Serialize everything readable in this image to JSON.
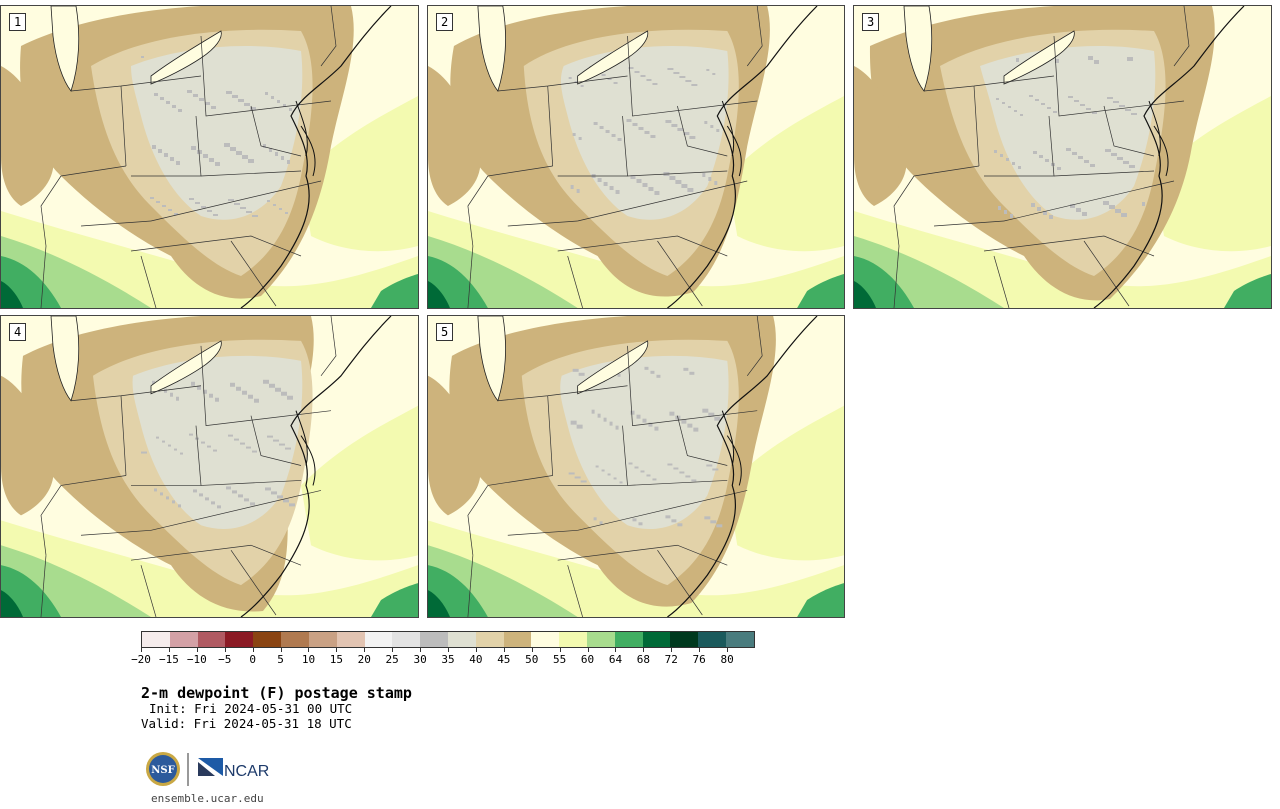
{
  "panels": [
    {
      "label": "1"
    },
    {
      "label": "2"
    },
    {
      "label": "3"
    },
    {
      "label": "4"
    },
    {
      "label": "5"
    }
  ],
  "colorbar": {
    "colors": [
      "#f5ecec",
      "#d4a1a6",
      "#b05a62",
      "#8b1a24",
      "#8a4412",
      "#b07a50",
      "#c9a184",
      "#e2c4b2",
      "#f3f3f3",
      "#e3e3e3",
      "#bcbcbc",
      "#dfe0d2",
      "#e2d2a9",
      "#cdb37c",
      "#fffde0",
      "#f3fab0",
      "#a8dc8e",
      "#41ae62",
      "#006a37",
      "#00391e",
      "#1b5a5c",
      "#4a7c7e"
    ],
    "tick_labels": [
      "−20",
      "−15",
      "−10",
      "−5",
      "0",
      "5",
      "10",
      "15",
      "20",
      "25",
      "30",
      "35",
      "40",
      "45",
      "50",
      "55",
      "60",
      "64",
      "68",
      "72",
      "76",
      "80"
    ]
  },
  "title": "2-m dewpoint (F) postage stamp",
  "init_text": "Init: Fri 2024-05-31 00 UTC",
  "valid_text": "Valid: Fri 2024-05-31 18 UTC",
  "logos": {
    "nsf": "NSF",
    "ncar": "NCAR"
  },
  "site": "ensemble.ucar.edu",
  "map_colors": {
    "humid": "#fffde0",
    "light_green": "#f3fab0",
    "mid_green": "#a8dc8e",
    "green": "#41ae62",
    "dark_green": "#006a37",
    "tan": "#cdb37c",
    "light_tan": "#e2d2a9",
    "pale_gray": "#dfe0d2",
    "gray": "#bcbcbc",
    "lake": "#fffde0"
  }
}
